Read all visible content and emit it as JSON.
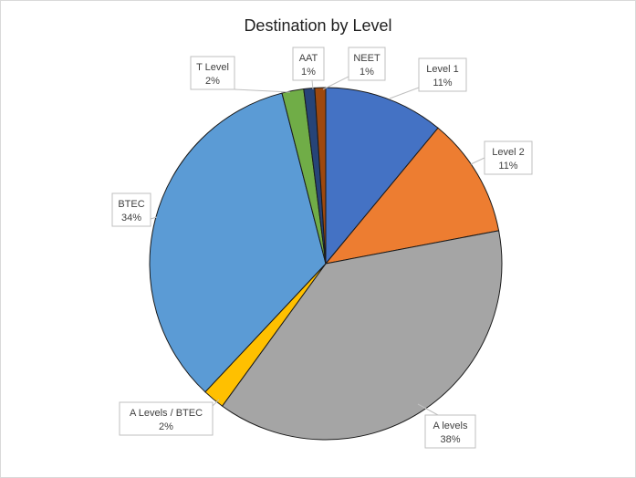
{
  "chart_data": {
    "type": "pie",
    "title": "Destination by Level",
    "slices": [
      {
        "category": "Level 1",
        "value": 11,
        "label": "11%",
        "color": "#4472c4"
      },
      {
        "category": "Level 2",
        "value": 11,
        "label": "11%",
        "color": "#ed7d31"
      },
      {
        "category": "A levels",
        "value": 38,
        "label": "38%",
        "color": "#a5a5a5"
      },
      {
        "category": "A Levels / BTEC",
        "value": 2,
        "label": "2%",
        "color": "#ffc000"
      },
      {
        "category": "BTEC",
        "value": 34,
        "label": "34%",
        "color": "#5b9bd5"
      },
      {
        "category": "T Level",
        "value": 2,
        "label": "2%",
        "color": "#70ad47"
      },
      {
        "category": "AAT",
        "value": 1,
        "label": "1%",
        "color": "#264478"
      },
      {
        "category": "NEET",
        "value": 1,
        "label": "1%",
        "color": "#9e480e"
      }
    ],
    "legend": "none",
    "data_labels": "callouts"
  }
}
